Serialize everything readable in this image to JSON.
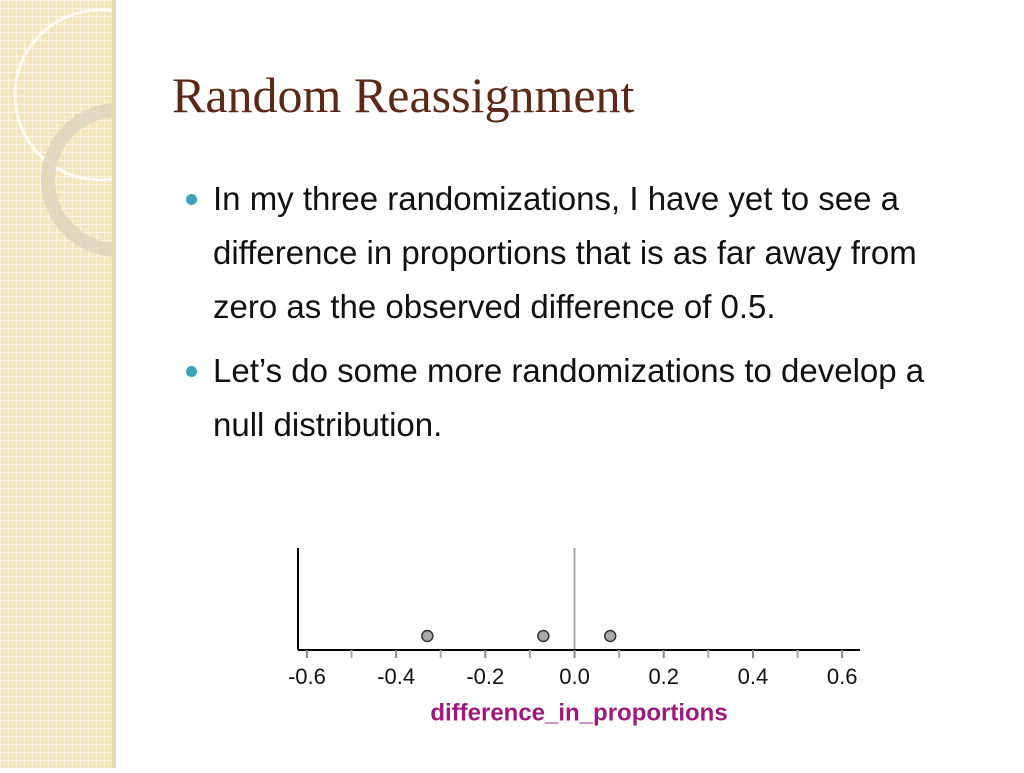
{
  "title": "Random Reassignment",
  "bullets": [
    "In my three randomizations, I have yet to see a difference in proportions that is as far away from zero as the observed difference of 0.5.",
    "Let’s do some more randomizations to develop a null distribution."
  ],
  "chart_data": {
    "type": "dot",
    "values": [
      -0.33,
      -0.07,
      0.08
    ],
    "color": "#a8a8a8",
    "x_label": "difference_in_proportions",
    "xlim": [
      -0.62,
      0.64
    ],
    "xticks": [
      -0.6,
      -0.4,
      -0.2,
      {
        "value": 0,
        "label": "0.0"
      },
      0.2,
      0.4,
      0.6
    ],
    "minor_xticks": [
      -0.5,
      -0.3,
      -0.1,
      0.1,
      0.3,
      0.5
    ],
    "vline": 0
  }
}
